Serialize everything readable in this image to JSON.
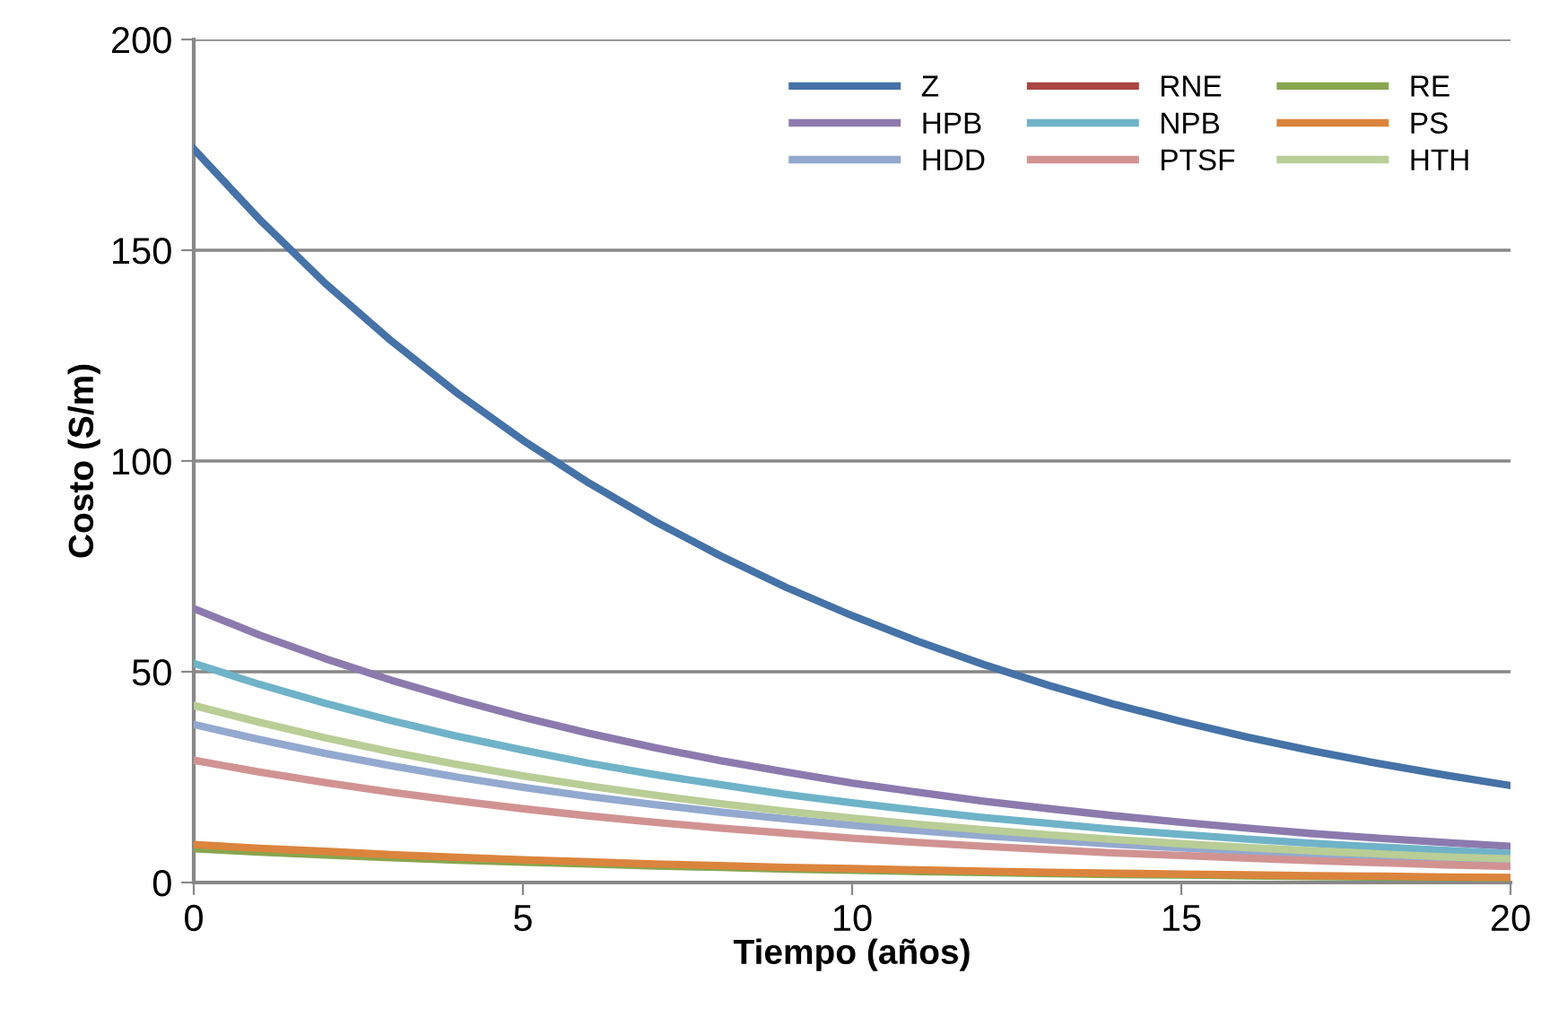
{
  "chart_data": {
    "type": "line",
    "xlabel": "Tiempo (años)",
    "ylabel": "Costo (S/m)",
    "x": [
      0,
      1,
      2,
      3,
      4,
      5,
      6,
      7,
      8,
      9,
      10,
      11,
      12,
      13,
      14,
      15,
      16,
      17,
      18,
      19,
      20
    ],
    "xlim": [
      0,
      20
    ],
    "xticks": [
      0,
      5,
      10,
      15,
      20
    ],
    "ylim": [
      0,
      200
    ],
    "yticks": [
      0,
      50,
      100,
      150,
      200
    ],
    "grid": "y",
    "legend": "top right",
    "marker": "none",
    "line_style": "solid",
    "series": [
      {
        "name": "Z",
        "color": "#4572a7",
        "values": [
          174,
          157.3,
          142.1,
          128.5,
          116.1,
          104.9,
          94.8,
          85.7,
          77.5,
          70.0,
          63.3,
          57.2,
          51.7,
          46.7,
          42.2,
          38.2,
          34.5,
          31.2,
          28.2,
          25.5,
          23.0
        ]
      },
      {
        "name": "HPB",
        "color": "#8c7aae",
        "values": [
          65,
          58.7,
          53.1,
          48.0,
          43.4,
          39.2,
          35.4,
          32.0,
          28.9,
          26.2,
          23.6,
          21.4,
          19.3,
          17.5,
          15.8,
          14.3,
          12.9,
          11.6,
          10.5,
          9.5,
          8.6
        ]
      },
      {
        "name": "HDD",
        "color": "#93a9cf",
        "values": [
          37.5,
          33.9,
          30.6,
          27.7,
          25.0,
          22.6,
          20.4,
          18.5,
          16.7,
          15.1,
          13.6,
          12.3,
          11.1,
          10.1,
          9.1,
          8.2,
          7.4,
          6.7,
          6.1,
          5.5,
          5.0
        ]
      },
      {
        "name": "RNE",
        "color": "#aa4643",
        "values": [
          null,
          null,
          null,
          null,
          null,
          null,
          null,
          null,
          null,
          null,
          null,
          null,
          null,
          null,
          null,
          null,
          null,
          null,
          null,
          null,
          null
        ]
      },
      {
        "name": "NPB",
        "color": "#6fb3c8",
        "values": [
          52,
          47.0,
          42.5,
          38.4,
          34.7,
          31.4,
          28.3,
          25.6,
          23.2,
          20.9,
          18.9,
          17.1,
          15.4,
          14.0,
          12.6,
          11.4,
          10.3,
          9.3,
          8.4,
          7.6,
          6.9
        ]
      },
      {
        "name": "PTSF",
        "color": "#d19392",
        "values": [
          29,
          26.2,
          23.7,
          21.4,
          19.4,
          17.5,
          15.8,
          14.3,
          12.9,
          11.7,
          10.5,
          9.5,
          8.6,
          7.8,
          7.0,
          6.4,
          5.8,
          5.2,
          4.7,
          4.2,
          3.8
        ]
      },
      {
        "name": "RE",
        "color": "#89a54e",
        "values": [
          8,
          7.2,
          6.5,
          5.9,
          5.3,
          4.8,
          4.4,
          3.9,
          3.6,
          3.2,
          2.9,
          2.6,
          2.4,
          2.1,
          1.9,
          1.8,
          1.6,
          1.4,
          1.3,
          1.2,
          1.1
        ]
      },
      {
        "name": "PS",
        "color": "#db843d",
        "values": [
          9,
          8.1,
          7.4,
          6.6,
          6.0,
          5.4,
          4.9,
          4.4,
          4.0,
          3.6,
          3.3,
          3.0,
          2.7,
          2.4,
          2.2,
          2.0,
          1.8,
          1.6,
          1.5,
          1.3,
          1.2
        ]
      },
      {
        "name": "HTH",
        "color": "#b9cd96",
        "values": [
          42,
          38.0,
          34.3,
          31.0,
          28.0,
          25.3,
          22.9,
          20.7,
          18.7,
          16.9,
          15.3,
          13.8,
          12.5,
          11.3,
          10.2,
          9.2,
          8.3,
          7.5,
          6.8,
          6.1,
          5.6
        ]
      }
    ]
  }
}
